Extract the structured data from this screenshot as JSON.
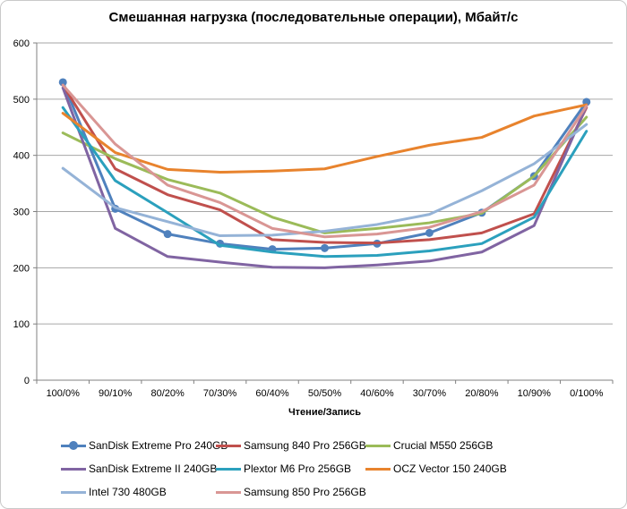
{
  "chart_data": {
    "type": "line",
    "title": "Смешанная нагрузка (последовательные операции), Мбайт/с",
    "xlabel": "Чтение/Запись",
    "ylabel": "",
    "ylim": [
      0,
      600
    ],
    "y_ticks": [
      0,
      100,
      200,
      300,
      400,
      500,
      600
    ],
    "grid": true,
    "legend_position": "bottom",
    "categories": [
      "100/0%",
      "90/10%",
      "80/20%",
      "70/30%",
      "60/40%",
      "50/50%",
      "40/60%",
      "30/70%",
      "20/80%",
      "10/90%",
      "0/100%"
    ],
    "series": [
      {
        "name": "SanDisk Extreme Pro 240GB",
        "color": "#4F81BD",
        "marker": true,
        "values": [
          530,
          305,
          260,
          243,
          233,
          235,
          243,
          262,
          298,
          363,
          495
        ]
      },
      {
        "name": "Samsung 840 Pro 256GB",
        "color": "#C0504D",
        "marker": false,
        "values": [
          525,
          376,
          330,
          303,
          250,
          245,
          244,
          250,
          262,
          296,
          485
        ]
      },
      {
        "name": "Crucial M550 256GB",
        "color": "#9BBB59",
        "marker": false,
        "values": [
          440,
          394,
          357,
          333,
          290,
          262,
          270,
          280,
          297,
          363,
          468
        ]
      },
      {
        "name": "SanDisk Extreme II 240GB",
        "color": "#8064A2",
        "marker": false,
        "values": [
          520,
          270,
          220,
          210,
          201,
          200,
          205,
          212,
          228,
          275,
          488
        ]
      },
      {
        "name": "Plextor M6 Pro 256GB",
        "color": "#2BA0BD",
        "marker": false,
        "values": [
          485,
          355,
          298,
          240,
          228,
          220,
          222,
          230,
          243,
          290,
          443
        ]
      },
      {
        "name": "OCZ Vector 150 240GB",
        "color": "#E8832D",
        "marker": false,
        "values": [
          475,
          405,
          375,
          370,
          372,
          376,
          398,
          418,
          432,
          470,
          490
        ]
      },
      {
        "name": "Intel 730 480GB",
        "color": "#95B3D7",
        "marker": false,
        "values": [
          377,
          307,
          282,
          257,
          258,
          265,
          277,
          295,
          337,
          385,
          455
        ]
      },
      {
        "name": "Samsung 850 Pro 256GB",
        "color": "#D99694",
        "marker": false,
        "values": [
          525,
          420,
          347,
          316,
          270,
          255,
          260,
          272,
          300,
          347,
          488
        ]
      }
    ]
  },
  "colors": {
    "axis": "#808080",
    "grid": "#A6A6A6",
    "text": "#000000",
    "frame_border": "#C9C9C9"
  }
}
